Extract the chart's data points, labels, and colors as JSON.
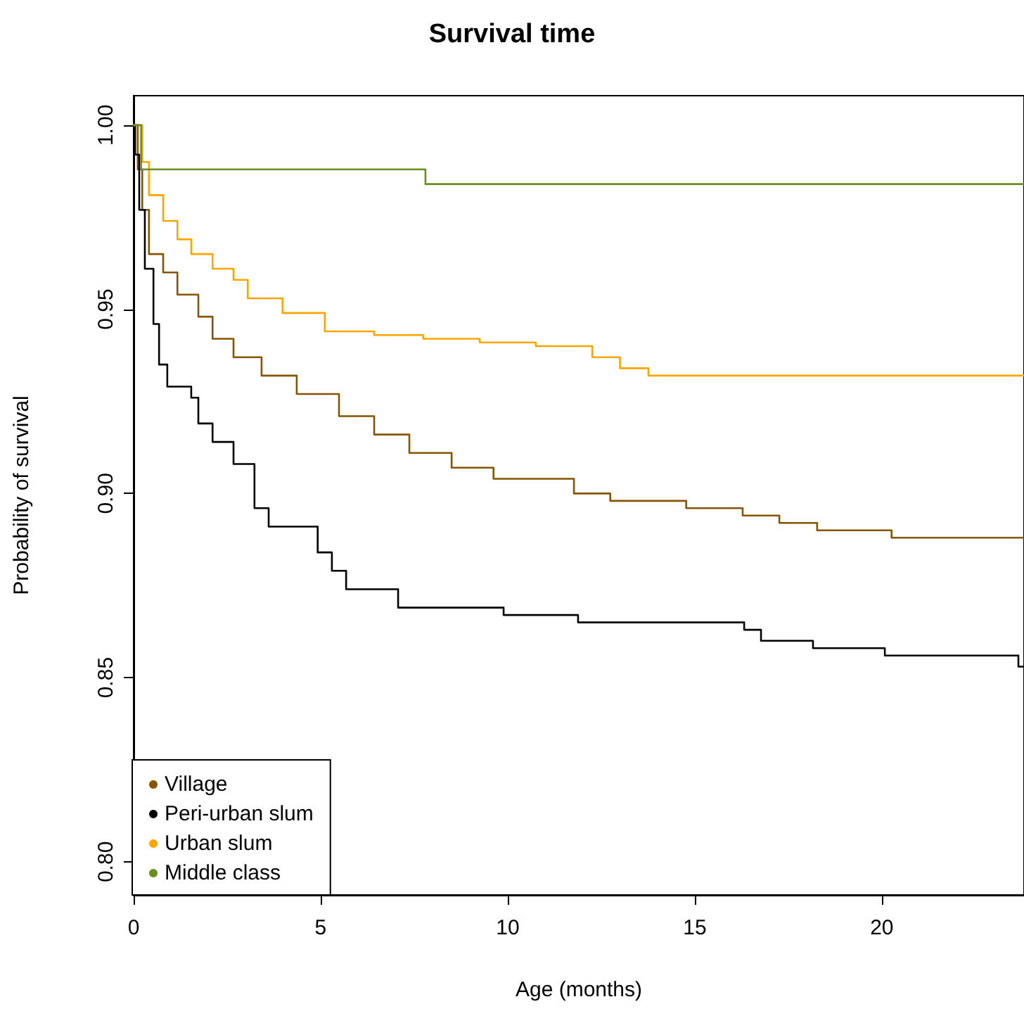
{
  "chart_data": {
    "type": "step",
    "title": "Survival time",
    "xlabel": "Age (months)",
    "ylabel": "Probability of survival",
    "xlim": [
      0,
      23.8
    ],
    "xticks": [
      0,
      5,
      10,
      15,
      20
    ],
    "ylim": [
      0.791,
      1.008
    ],
    "yticks": [
      {
        "value": 0.8,
        "label": "0.80"
      },
      {
        "value": 0.85,
        "label": "0.85"
      },
      {
        "value": 0.9,
        "label": "0.90"
      },
      {
        "value": 0.95,
        "label": "0.95"
      },
      {
        "value": 1,
        "label": "1.00"
      }
    ],
    "grid": false,
    "legend": "bottom left",
    "marker": "none",
    "line_style": "solid",
    "series": [
      {
        "name": "Village",
        "color": "#875400",
        "x": [
          0,
          0.11,
          0.23,
          0.41,
          0.79,
          1.17,
          1.73,
          2.11,
          2.67,
          3.42,
          4.36,
          5.49,
          6.43,
          7.37,
          8.5,
          9.62,
          11.77,
          12.74,
          14.77,
          16.28,
          17.26,
          18.27,
          20.26,
          23.8
        ],
        "values": [
          1,
          0.988,
          0.977,
          0.965,
          0.96,
          0.954,
          0.948,
          0.942,
          0.937,
          0.932,
          0.927,
          0.921,
          0.916,
          0.911,
          0.907,
          0.904,
          0.9,
          0.898,
          0.896,
          0.894,
          0.892,
          0.89,
          0.888,
          0.888
        ]
      },
      {
        "name": "Peri-urban slum",
        "color": "#000000",
        "x": [
          0,
          0.04,
          0.15,
          0.3,
          0.53,
          0.68,
          0.9,
          1.54,
          1.73,
          2.11,
          2.67,
          3.23,
          3.61,
          4.92,
          5.3,
          5.68,
          7.07,
          9.89,
          11.88,
          16.32,
          16.77,
          18.16,
          20.08,
          23.65,
          23.8
        ],
        "values": [
          1,
          0.992,
          0.977,
          0.961,
          0.946,
          0.935,
          0.929,
          0.926,
          0.919,
          0.914,
          0.908,
          0.896,
          0.891,
          0.884,
          0.879,
          0.874,
          0.869,
          0.867,
          0.865,
          0.863,
          0.86,
          0.858,
          0.856,
          0.853,
          0.853
        ]
      },
      {
        "name": "Urban slum",
        "color": "#ffa500",
        "x": [
          0,
          0.23,
          0.41,
          0.79,
          1.17,
          1.54,
          2.11,
          2.67,
          3.05,
          3.98,
          5.11,
          6.43,
          7.74,
          9.25,
          10.75,
          12.26,
          13.0,
          13.76,
          23.8
        ],
        "values": [
          1,
          0.99,
          0.981,
          0.974,
          0.969,
          0.965,
          0.961,
          0.958,
          0.953,
          0.949,
          0.944,
          0.943,
          0.942,
          0.941,
          0.94,
          0.937,
          0.934,
          0.932,
          0.932
        ]
      },
      {
        "name": "Middle class",
        "color": "#6b8e23",
        "x": [
          0,
          0.2,
          7.8,
          23.8
        ],
        "values": [
          1,
          0.988,
          0.984,
          0.984
        ]
      }
    ]
  }
}
